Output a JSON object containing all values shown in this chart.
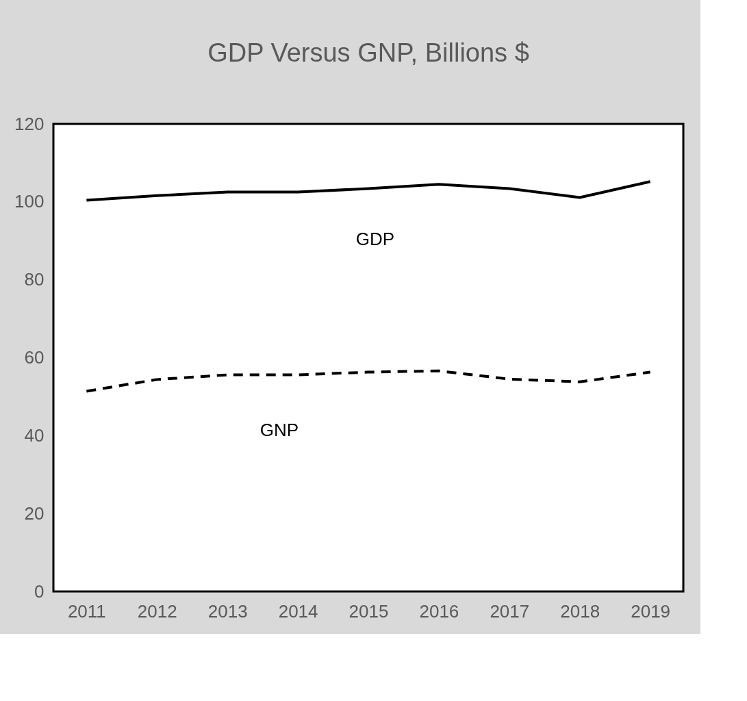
{
  "chart_data": {
    "type": "line",
    "title": "GDP Versus GNP, Billions $",
    "categories": [
      "2011",
      "2012",
      "2013",
      "2014",
      "2015",
      "2016",
      "2017",
      "2018",
      "2019"
    ],
    "series": [
      {
        "name": "GDP",
        "color": "#000000",
        "line_style": "solid",
        "values": [
          100.4,
          101.6,
          102.5,
          102.5,
          103.4,
          104.5,
          103.4,
          101.1,
          105.2
        ]
      },
      {
        "name": "GNP",
        "color": "#000000",
        "line_style": "dashed",
        "values": [
          51.4,
          54.4,
          55.6,
          55.6,
          56.3,
          56.6,
          54.5,
          53.8,
          56.3
        ]
      }
    ],
    "ylim": [
      0,
      120
    ],
    "yticks": [
      0,
      20,
      40,
      60,
      80,
      100,
      120
    ],
    "grid": false,
    "legend": false,
    "marker": "none"
  }
}
